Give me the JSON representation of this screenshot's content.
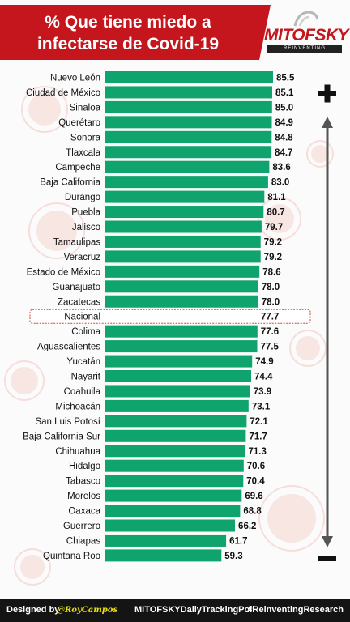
{
  "header": {
    "title": "% Que tiene miedo a infectarse de Covid-19",
    "brand_name": "MITOFSKY",
    "brand_tagline": "REINVENTING RESEARCH"
  },
  "chart_data": {
    "type": "bar",
    "orientation": "horizontal",
    "categories": [
      "Nuevo León",
      "Ciudad de México",
      "Sinaloa",
      "Querétaro",
      "Sonora",
      "Tlaxcala",
      "Campeche",
      "Baja California",
      "Durango",
      "Puebla",
      "Jalisco",
      "Tamaulipas",
      "Veracruz",
      "Estado de México",
      "Guanajuato",
      "Zacatecas",
      "Nacional",
      "Colima",
      "Aguascalientes",
      "Yucatán",
      "Nayarit",
      "Coahuila",
      "Michoacán",
      "San Luis Potosí",
      "Baja California Sur",
      "Chihuahua",
      "Hidalgo",
      "Tabasco",
      "Morelos",
      "Oaxaca",
      "Guerrero",
      "Chiapas",
      "Quintana Roo"
    ],
    "values": [
      85.5,
      85.1,
      85.0,
      84.9,
      84.8,
      84.7,
      83.6,
      83.0,
      81.1,
      80.7,
      79.7,
      79.2,
      79.2,
      78.6,
      78.0,
      78.0,
      77.7,
      77.6,
      77.5,
      74.9,
      74.4,
      73.9,
      73.1,
      72.1,
      71.7,
      71.3,
      70.6,
      70.4,
      69.6,
      68.8,
      66.2,
      61.7,
      59.3
    ],
    "value_labels": [
      "85.5",
      "85.1",
      "85.0",
      "84.9",
      "84.8",
      "84.7",
      "83.6",
      "83.0",
      "81.1",
      "80.7",
      "79.7",
      "79.2",
      "79.2",
      "78.6",
      "78.0",
      "78.0",
      "77.7",
      "77.6",
      "77.5",
      "74.9",
      "74.4",
      "73.9",
      "73.1",
      "72.1",
      "71.7",
      "71.3",
      "70.6",
      "70.4",
      "69.6",
      "68.8",
      "66.2",
      "61.7",
      "59.3"
    ],
    "highlight_category": "Nacional",
    "bar_color": "#0fa36e",
    "highlight_outline_color": "#d9433a",
    "title": "% Que tiene miedo a infectarse de Covid-19",
    "xlabel": "",
    "ylabel": "",
    "grid": false,
    "legend": "none"
  },
  "indicator": {
    "top_symbol": "+",
    "bottom_symbol": "−"
  },
  "footer": {
    "designed_by": "Designed by",
    "author": "@RoyCampos",
    "poll": "MITOFSKYDailyTrackingPoll",
    "hashtag": "#ReinventingResearch"
  }
}
